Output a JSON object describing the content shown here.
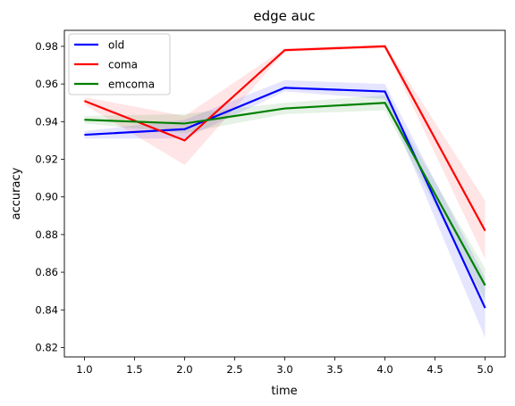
{
  "chart_data": {
    "type": "line",
    "title": "edge auc",
    "xlabel": "time",
    "ylabel": "accuracy",
    "xlim": [
      0.8,
      5.2
    ],
    "ylim": [
      0.815,
      0.9885
    ],
    "xticks": [
      1.0,
      1.5,
      2.0,
      2.5,
      3.0,
      3.5,
      4.0,
      4.5,
      5.0
    ],
    "xtick_labels": [
      "1.0",
      "1.5",
      "2.0",
      "2.5",
      "3.0",
      "3.5",
      "4.0",
      "4.5",
      "5.0"
    ],
    "yticks": [
      0.82,
      0.84,
      0.86,
      0.88,
      0.9,
      0.92,
      0.94,
      0.96,
      0.98
    ],
    "ytick_labels": [
      "0.82",
      "0.84",
      "0.86",
      "0.88",
      "0.90",
      "0.92",
      "0.94",
      "0.96",
      "0.98"
    ],
    "grid": false,
    "legend_position": "top-left",
    "x": [
      1,
      2,
      3,
      4,
      5
    ],
    "series": [
      {
        "name": "old",
        "color": "#0000ff",
        "values": [
          0.933,
          0.936,
          0.958,
          0.956,
          0.841
        ],
        "lower": [
          0.931,
          0.931,
          0.956,
          0.952,
          0.825
        ],
        "upper": [
          0.935,
          0.941,
          0.962,
          0.96,
          0.857
        ]
      },
      {
        "name": "coma",
        "color": "#ff0000",
        "values": [
          0.951,
          0.93,
          0.978,
          0.98,
          0.882
        ],
        "lower": [
          0.949,
          0.917,
          0.977,
          0.979,
          0.867
        ],
        "upper": [
          0.953,
          0.943,
          0.979,
          0.981,
          0.898
        ]
      },
      {
        "name": "emcoma",
        "color": "#008000",
        "values": [
          0.941,
          0.939,
          0.947,
          0.95,
          0.853
        ],
        "lower": [
          0.939,
          0.934,
          0.944,
          0.946,
          0.845
        ],
        "upper": [
          0.943,
          0.944,
          0.95,
          0.954,
          0.862
        ]
      }
    ]
  }
}
